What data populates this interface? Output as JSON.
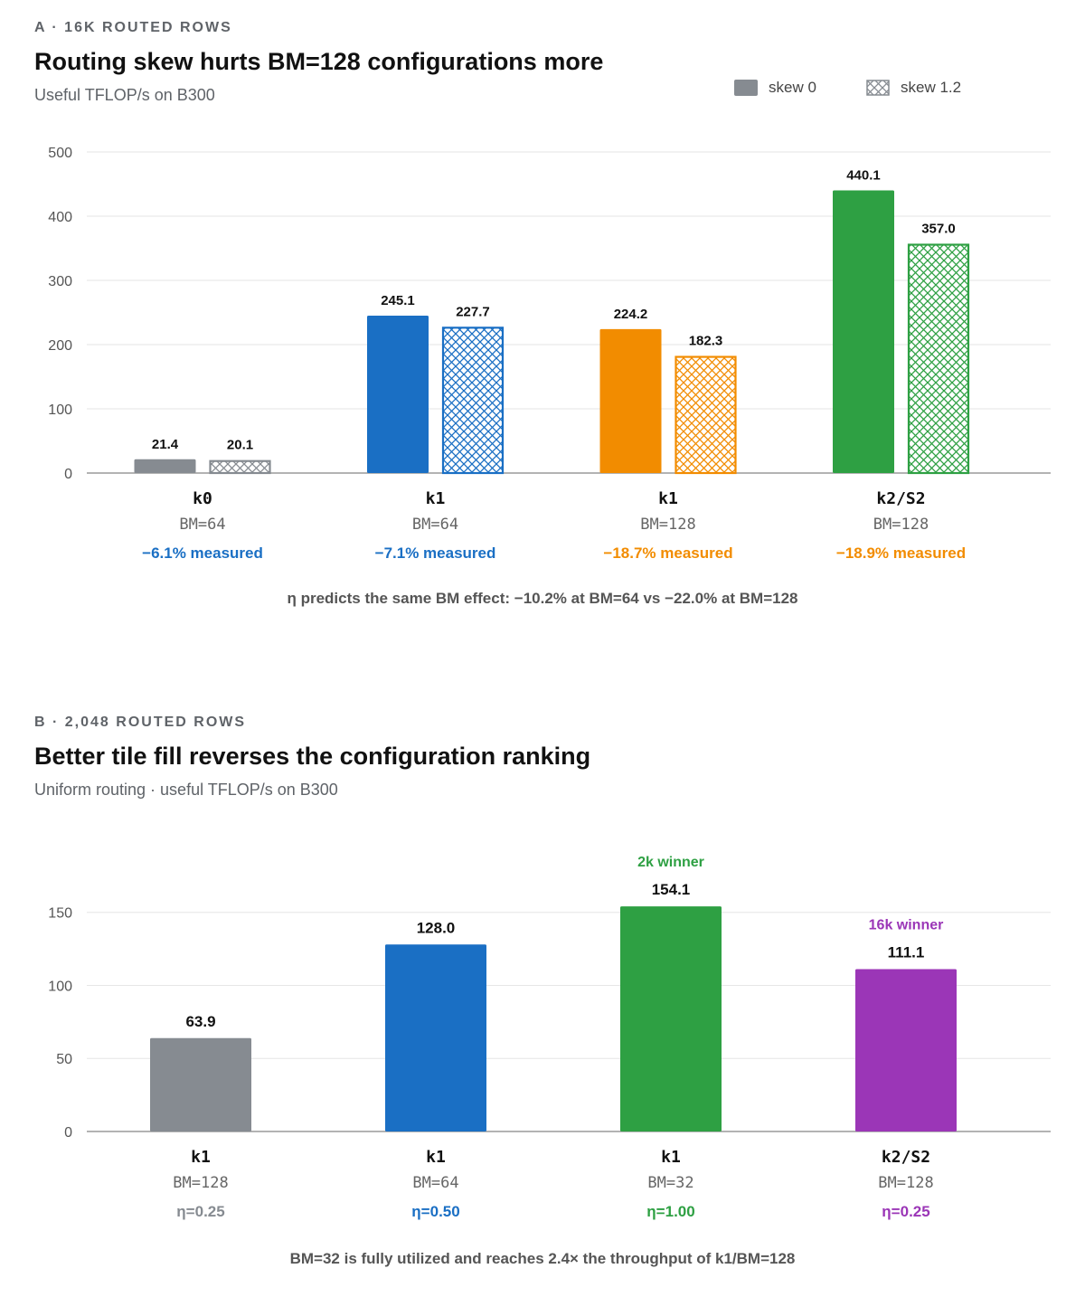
{
  "panel_a": {
    "kicker": "A · 16K ROUTED ROWS",
    "title": "Routing skew hurts BM=128 configurations more",
    "subtitle": "Useful TFLOP/s on B300",
    "legend": [
      {
        "label": "skew 0",
        "pattern": "solid"
      },
      {
        "label": "skew 1.2",
        "pattern": "crosshatch"
      }
    ],
    "footnote": "η predicts the same BM effect: −10.2% at BM=64 vs −22.0% at BM=128"
  },
  "panel_b": {
    "kicker": "B · 2,048 ROUTED ROWS",
    "title": "Better tile fill reverses the configuration ranking",
    "subtitle": "Uniform routing · useful TFLOP/s on B300",
    "footnote": "BM=32 is fully utilized and reaches 2.4× the throughput of k1/BM=128"
  },
  "chart_data": [
    {
      "type": "bar",
      "title": "Routing skew hurts BM=128 configurations more",
      "ylabel": "Useful TFLOP/s on B300",
      "ylim": [
        0,
        500
      ],
      "yticks": [
        0,
        100,
        200,
        300,
        400,
        500
      ],
      "grid": true,
      "legend_position": "top-right",
      "categories": [
        {
          "kernel": "k0",
          "bm": "BM=64",
          "note": "−6.1% measured",
          "color": "#1a6fc4"
        },
        {
          "kernel": "k1",
          "bm": "BM=64",
          "note": "−7.1% measured",
          "color": "#1a6fc4"
        },
        {
          "kernel": "k1",
          "bm": "BM=128",
          "note": "−18.7% measured",
          "color": "#f28c00"
        },
        {
          "kernel": "k2/S2",
          "bm": "BM=128",
          "note": "−18.9% measured",
          "color": "#f28c00"
        }
      ],
      "series": [
        {
          "name": "skew 0",
          "values": [
            21.4,
            245.1,
            224.2,
            440.1
          ],
          "value_labels": [
            "21.4",
            "245.1",
            "224.2",
            "440.1"
          ]
        },
        {
          "name": "skew 1.2",
          "values": [
            20.1,
            227.7,
            182.3,
            357.0
          ],
          "value_labels": [
            "20.1",
            "227.7",
            "182.3",
            "357.0"
          ]
        }
      ],
      "bar_colors": [
        "#868b91",
        "#1a6fc4",
        "#f28c00",
        "#2ea043"
      ]
    },
    {
      "type": "bar",
      "title": "Better tile fill reverses the configuration ranking",
      "ylabel": "Uniform routing · useful TFLOP/s on B300",
      "ylim": [
        0,
        165
      ],
      "yticks": [
        0,
        50,
        100,
        150
      ],
      "grid": true,
      "categories": [
        {
          "kernel": "k1",
          "bm": "BM=128",
          "note": "η=0.25",
          "color": "#868b91",
          "badge": ""
        },
        {
          "kernel": "k1",
          "bm": "BM=64",
          "note": "η=0.50",
          "color": "#1a6fc4",
          "badge": ""
        },
        {
          "kernel": "k1",
          "bm": "BM=32",
          "note": "η=1.00",
          "color": "#2ea043",
          "badge": "2k winner"
        },
        {
          "kernel": "k2/S2",
          "bm": "BM=128",
          "note": "η=0.25",
          "color": "#9b36b7",
          "badge": "16k winner"
        }
      ],
      "series": [
        {
          "values": [
            63.9,
            128.0,
            154.1,
            111.1
          ],
          "value_labels": [
            "63.9",
            "128.0",
            "154.1",
            "111.1"
          ]
        }
      ],
      "bar_colors": [
        "#868b91",
        "#1a6fc4",
        "#2ea043",
        "#9b36b7"
      ]
    }
  ]
}
